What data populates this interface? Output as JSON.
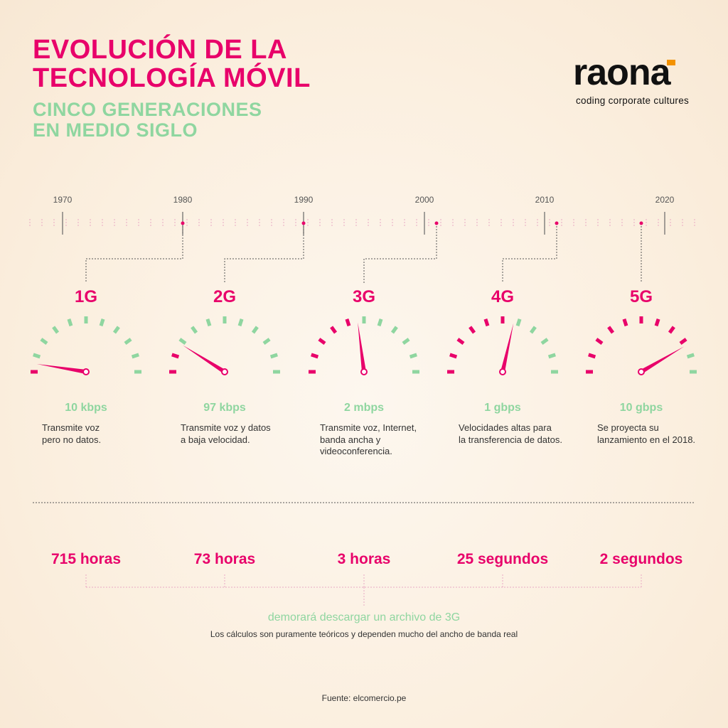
{
  "title_line1": "EVOLUCIÓN DE LA",
  "title_line2": "TECNOLOGÍA MÓVIL",
  "subtitle_line1": "CINCO GENERACIONES",
  "subtitle_line2": "EN MEDIO SIGLO",
  "logo": {
    "wordmark": "raona",
    "tagline": "coding corporate cultures"
  },
  "colors": {
    "accent": "#e8006a",
    "green": "#8fd6a0",
    "logo_orange": "#f39200"
  },
  "timeline": {
    "years": [
      "1970",
      "1980",
      "1990",
      "2000",
      "2010",
      "2020"
    ]
  },
  "generations": [
    {
      "label": "1G",
      "speed": "10 kbps",
      "desc": [
        "Transmite voz",
        "pero no datos."
      ],
      "level": 0.05,
      "time": "715 horas"
    },
    {
      "label": "2G",
      "speed": "97 kbps",
      "desc": [
        "Transmite voz y datos",
        "a baja velocidad."
      ],
      "level": 0.18,
      "time": "73 horas"
    },
    {
      "label": "3G",
      "speed": "2 mbps",
      "desc": [
        "Transmite voz, Internet,",
        "banda ancha y",
        "videoconferencia."
      ],
      "level": 0.46,
      "time": "3 horas"
    },
    {
      "label": "4G",
      "speed": "1 gbps",
      "desc": [
        "Velocidades altas para",
        "la transferencia de datos."
      ],
      "level": 0.57,
      "time": "25 segundos"
    },
    {
      "label": "5G",
      "speed": "10 gbps",
      "desc": [
        "Se proyecta su",
        "lanzamiento en el 2018."
      ],
      "level": 0.83,
      "time": "2 segundos"
    }
  ],
  "caption": "demorará descargar un archivo de 3G",
  "note": "Los cálculos son puramente teóricos y dependen mucho del ancho de banda real",
  "source": "Fuente: elcomercio.pe"
}
